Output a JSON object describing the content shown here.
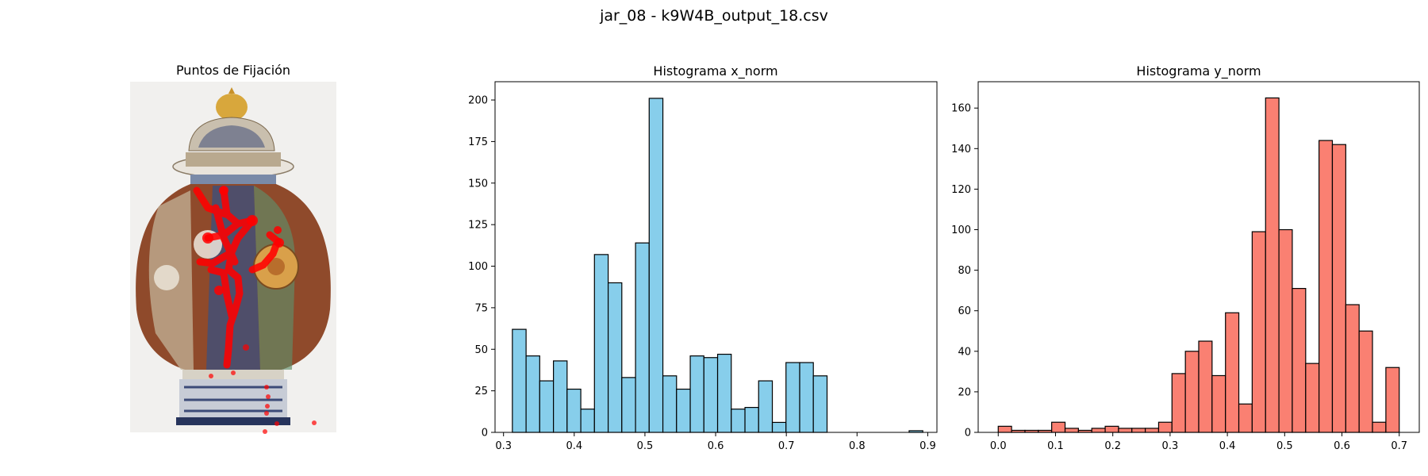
{
  "figure": {
    "suptitle": "jar_08 - k9W4B_output_18.csv"
  },
  "image_panel": {
    "title": "Puntos de Fijación",
    "marker_color": "#ff0000"
  },
  "colors": {
    "hist_x_fill": "#87ceeb",
    "hist_y_fill": "#fa8072",
    "edge": "#000000"
  },
  "chart_data": [
    {
      "type": "bar",
      "title": "Histograma x_norm",
      "xlabel": "",
      "ylabel": "",
      "xlim": [
        0.288,
        0.913
      ],
      "ylim": [
        0,
        211
      ],
      "xticks": [
        0.3,
        0.4,
        0.5,
        0.6,
        0.7,
        0.8,
        0.9
      ],
      "xtick_labels": [
        "0.3",
        "0.4",
        "0.5",
        "0.6",
        "0.7",
        "0.8",
        "0.9"
      ],
      "yticks": [
        0,
        25,
        50,
        75,
        100,
        125,
        150,
        175,
        200
      ],
      "ytick_labels": [
        "0",
        "25",
        "50",
        "75",
        "100",
        "125",
        "150",
        "175",
        "200"
      ],
      "bin_edges": [
        0.3125,
        0.3319,
        0.3512,
        0.3706,
        0.3899,
        0.4093,
        0.4286,
        0.448,
        0.4673,
        0.4867,
        0.506,
        0.5254,
        0.5447,
        0.5641,
        0.5834,
        0.6028,
        0.6221,
        0.6415,
        0.6608,
        0.6802,
        0.6995,
        0.7189,
        0.7382,
        0.7576,
        0.7769,
        0.7963,
        0.8156,
        0.835,
        0.8543,
        0.8737,
        0.893
      ],
      "counts": [
        62,
        46,
        31,
        43,
        26,
        14,
        107,
        90,
        33,
        114,
        201,
        34,
        26,
        46,
        45,
        47,
        14,
        15,
        31,
        6,
        42,
        42,
        34,
        0,
        0,
        0,
        0,
        0,
        0,
        1
      ],
      "color": "#87ceeb",
      "grid": false
    },
    {
      "type": "bar",
      "title": "Histograma y_norm",
      "xlabel": "",
      "ylabel": "",
      "xlim": [
        -0.035,
        0.735
      ],
      "ylim": [
        0,
        173
      ],
      "xticks": [
        0.0,
        0.1,
        0.2,
        0.3,
        0.4,
        0.5,
        0.6,
        0.7
      ],
      "xtick_labels": [
        "0.0",
        "0.1",
        "0.2",
        "0.3",
        "0.4",
        "0.5",
        "0.6",
        "0.7"
      ],
      "yticks": [
        0,
        20,
        40,
        60,
        80,
        100,
        120,
        140,
        160
      ],
      "ytick_labels": [
        "0",
        "20",
        "40",
        "60",
        "80",
        "100",
        "120",
        "140",
        "160"
      ],
      "bin_edges": [
        0.0,
        0.0233,
        0.0467,
        0.07,
        0.0933,
        0.1167,
        0.14,
        0.1633,
        0.1867,
        0.21,
        0.2333,
        0.2567,
        0.28,
        0.3033,
        0.3267,
        0.35,
        0.3733,
        0.3967,
        0.42,
        0.4433,
        0.4667,
        0.49,
        0.5133,
        0.5367,
        0.56,
        0.5833,
        0.6067,
        0.63,
        0.6533,
        0.6767,
        0.7
      ],
      "counts": [
        3,
        1,
        1,
        1,
        5,
        2,
        1,
        2,
        3,
        2,
        2,
        2,
        5,
        29,
        40,
        45,
        28,
        59,
        14,
        99,
        165,
        100,
        71,
        34,
        144,
        142,
        63,
        50,
        5,
        32
      ],
      "color": "#fa8072",
      "grid": false
    }
  ]
}
